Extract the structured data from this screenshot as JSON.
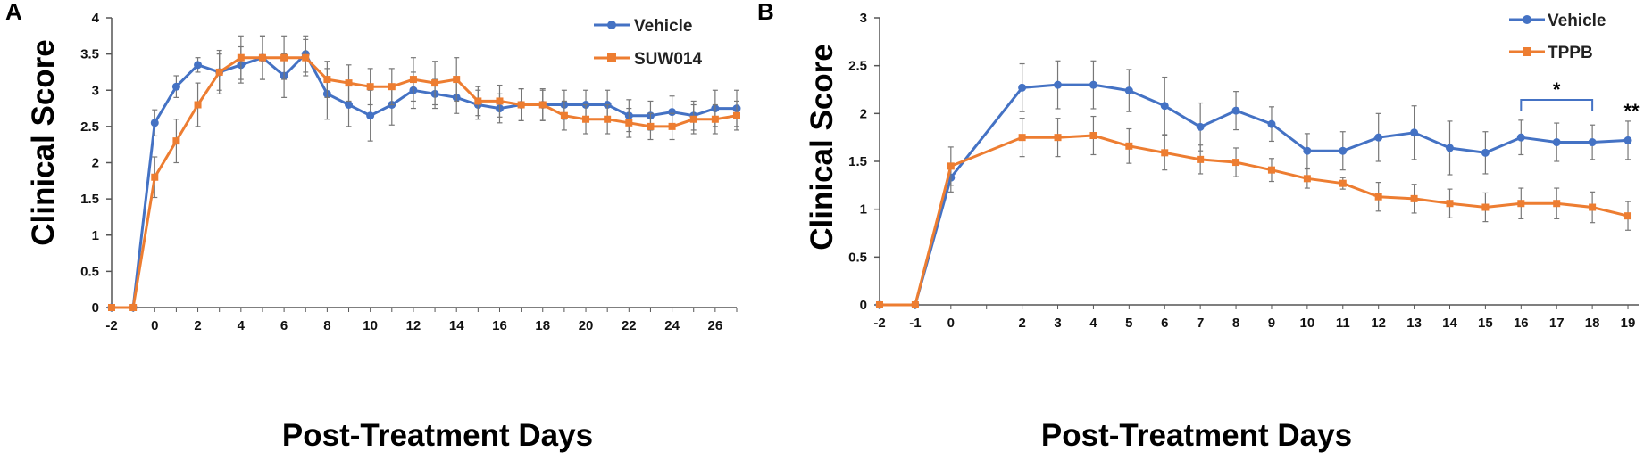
{
  "chart_data": [
    {
      "panel": "A",
      "type": "line",
      "title": "",
      "xlabel": "Post-Treatment Days",
      "ylabel": "Clinical Score",
      "ylim": [
        0,
        4
      ],
      "yticks": [
        "0",
        "0.5",
        "1",
        "1.5",
        "2",
        "2.5",
        "3",
        "3.5",
        "4"
      ],
      "xlim": [
        -2,
        27
      ],
      "xticks": [
        "-2",
        "0",
        "2",
        "4",
        "6",
        "8",
        "10",
        "12",
        "14",
        "16",
        "18",
        "20",
        "22",
        "24",
        "26"
      ],
      "legend_position": "top-right",
      "x": [
        -2,
        -1,
        0,
        1,
        2,
        3,
        4,
        5,
        6,
        7,
        8,
        9,
        10,
        11,
        12,
        13,
        14,
        15,
        16,
        17,
        18,
        19,
        20,
        21,
        22,
        23,
        24,
        25,
        26,
        27
      ],
      "series": [
        {
          "name": "Vehicle",
          "color": "#4472C4",
          "values": [
            0,
            0,
            2.55,
            3.05,
            3.35,
            3.25,
            3.35,
            3.45,
            3.2,
            3.5,
            2.95,
            2.8,
            2.65,
            2.8,
            3.0,
            2.95,
            2.9,
            2.8,
            2.75,
            2.8,
            2.8,
            2.8,
            2.8,
            2.8,
            2.65,
            2.65,
            2.7,
            2.65,
            2.75,
            2.75
          ],
          "errors": [
            0,
            0,
            0.18,
            0.15,
            0.1,
            0.25,
            0.25,
            0.3,
            0.3,
            0.25,
            0.35,
            0.3,
            0.35,
            0.28,
            0.25,
            0.2,
            0.22,
            0.2,
            0.2,
            0.22,
            0.22,
            0.2,
            0.2,
            0.2,
            0.22,
            0.2,
            0.22,
            0.2,
            0.25,
            0.25
          ]
        },
        {
          "name": "SUW014",
          "color": "#ED7D31",
          "values": [
            0,
            0,
            1.8,
            2.3,
            2.8,
            3.25,
            3.45,
            3.45,
            3.45,
            3.45,
            3.15,
            3.1,
            3.05,
            3.05,
            3.15,
            3.1,
            3.15,
            2.85,
            2.85,
            2.8,
            2.8,
            2.65,
            2.6,
            2.6,
            2.55,
            2.5,
            2.5,
            2.6,
            2.6,
            2.65
          ],
          "errors": [
            0,
            0,
            0.28,
            0.3,
            0.3,
            0.3,
            0.3,
            0.3,
            0.3,
            0.25,
            0.25,
            0.25,
            0.25,
            0.25,
            0.3,
            0.3,
            0.3,
            0.2,
            0.22,
            0.22,
            0.2,
            0.2,
            0.2,
            0.2,
            0.2,
            0.18,
            0.18,
            0.2,
            0.2,
            0.2
          ]
        }
      ]
    },
    {
      "panel": "B",
      "type": "line",
      "title": "",
      "xlabel": "Post-Treatment Days",
      "ylabel": "Clinical Score",
      "ylim": [
        0,
        3
      ],
      "yticks": [
        "0",
        "0.5",
        "1",
        "1.5",
        "2",
        "2.5",
        "3"
      ],
      "xlim": [
        -2,
        19
      ],
      "xticks": [
        "-2",
        "-1",
        "0",
        "2",
        "3",
        "4",
        "5",
        "6",
        "7",
        "8",
        "9",
        "10",
        "11",
        "12",
        "13",
        "14",
        "15",
        "16",
        "17",
        "18",
        "19"
      ],
      "legend_position": "top-right",
      "x": [
        -2,
        -1,
        0,
        2,
        3,
        4,
        5,
        6,
        7,
        8,
        9,
        10,
        11,
        12,
        13,
        14,
        15,
        16,
        17,
        18,
        19
      ],
      "series": [
        {
          "name": "Vehicle",
          "color": "#4472C4",
          "values": [
            0,
            0,
            1.33,
            2.27,
            2.3,
            2.3,
            2.24,
            2.08,
            1.86,
            2.03,
            1.89,
            1.61,
            1.61,
            1.75,
            1.8,
            1.64,
            1.59,
            1.75,
            1.7,
            1.7,
            1.72
          ],
          "errors": [
            0,
            0,
            0.15,
            0.25,
            0.25,
            0.25,
            0.22,
            0.3,
            0.25,
            0.2,
            0.18,
            0.18,
            0.2,
            0.25,
            0.28,
            0.28,
            0.22,
            0.18,
            0.2,
            0.18,
            0.2
          ]
        },
        {
          "name": "TPPB",
          "color": "#ED7D31",
          "values": [
            0,
            0,
            1.45,
            1.75,
            1.75,
            1.77,
            1.66,
            1.59,
            1.52,
            1.49,
            1.41,
            1.32,
            1.27,
            1.13,
            1.11,
            1.06,
            1.02,
            1.06,
            1.06,
            1.02,
            0.93
          ],
          "errors": [
            0,
            0,
            0.2,
            0.2,
            0.2,
            0.2,
            0.18,
            0.18,
            0.15,
            0.15,
            0.12,
            0.1,
            0.06,
            0.15,
            0.15,
            0.15,
            0.15,
            0.16,
            0.16,
            0.16,
            0.15
          ]
        }
      ],
      "annotations": [
        {
          "text": "*",
          "bracket_from_x": 16,
          "bracket_to_x": 18
        },
        {
          "text": "**"
        }
      ]
    }
  ]
}
